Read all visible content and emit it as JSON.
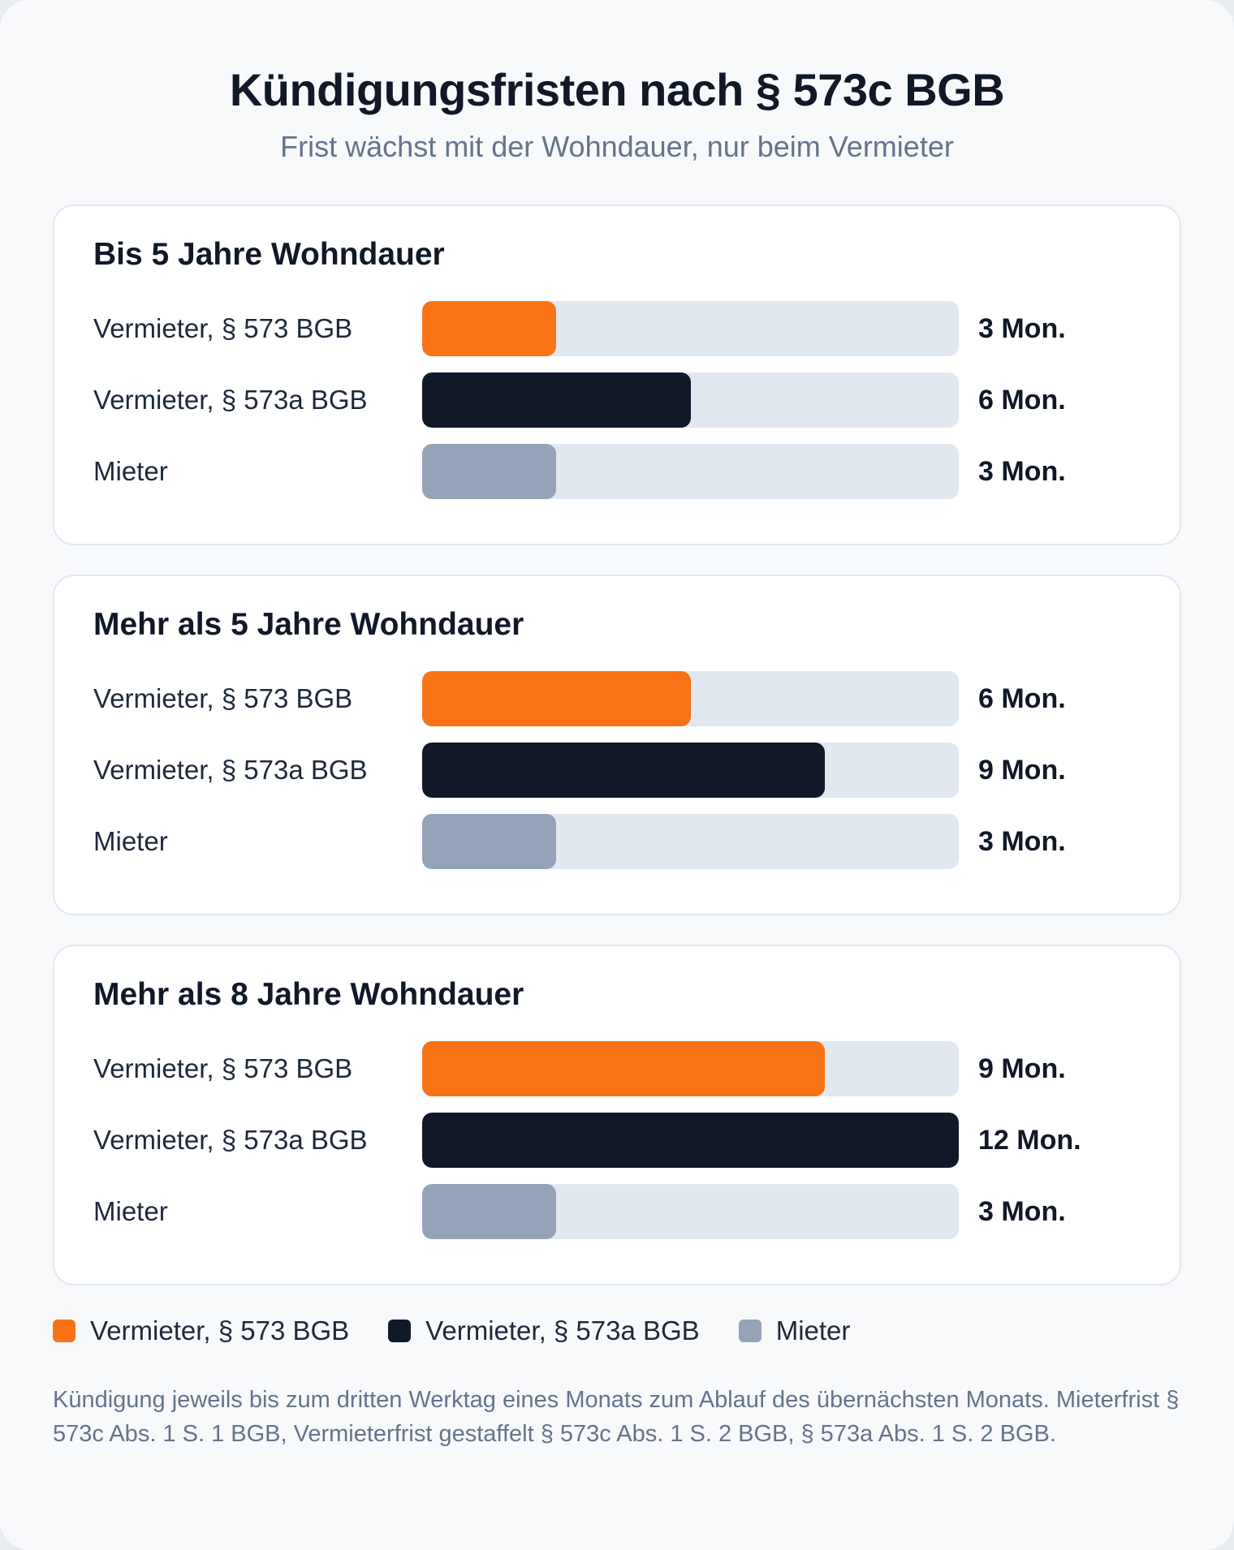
{
  "title": "Kündigungsfristen nach § 573c BGB",
  "subtitle": "Frist wächst mit der Wohndauer, nur beim Vermieter",
  "colors": {
    "vermieter_573": "#f97316",
    "vermieter_573a": "#111827",
    "mieter": "#94a3b8",
    "track": "#e2e8f0"
  },
  "chart_data": {
    "type": "bar",
    "orientation": "horizontal",
    "unit": "Mon.",
    "xlim": [
      0,
      12
    ],
    "grid": false,
    "legend_position": "bottom-left",
    "panels": [
      {
        "title": "Bis 5 Jahre Wohndauer",
        "rows": [
          {
            "label": "Vermieter, § 573 BGB",
            "value": 3,
            "value_label": "3 Mon.",
            "series": "vermieter_573"
          },
          {
            "label": "Vermieter, § 573a BGB",
            "value": 6,
            "value_label": "6 Mon.",
            "series": "vermieter_573a"
          },
          {
            "label": "Mieter",
            "value": 3,
            "value_label": "3 Mon.",
            "series": "mieter"
          }
        ]
      },
      {
        "title": "Mehr als 5 Jahre Wohndauer",
        "rows": [
          {
            "label": "Vermieter, § 573 BGB",
            "value": 6,
            "value_label": "6 Mon.",
            "series": "vermieter_573"
          },
          {
            "label": "Vermieter, § 573a BGB",
            "value": 9,
            "value_label": "9 Mon.",
            "series": "vermieter_573a"
          },
          {
            "label": "Mieter",
            "value": 3,
            "value_label": "3 Mon.",
            "series": "mieter"
          }
        ]
      },
      {
        "title": "Mehr als 8 Jahre Wohndauer",
        "rows": [
          {
            "label": "Vermieter, § 573 BGB",
            "value": 9,
            "value_label": "9 Mon.",
            "series": "vermieter_573"
          },
          {
            "label": "Vermieter, § 573a BGB",
            "value": 12,
            "value_label": "12 Mon.",
            "series": "vermieter_573a"
          },
          {
            "label": "Mieter",
            "value": 3,
            "value_label": "3 Mon.",
            "series": "mieter"
          }
        ]
      }
    ],
    "legend": [
      {
        "label": "Vermieter, § 573 BGB",
        "series": "vermieter_573"
      },
      {
        "label": "Vermieter, § 573a BGB",
        "series": "vermieter_573a"
      },
      {
        "label": "Mieter",
        "series": "mieter"
      }
    ]
  },
  "footnote": "Kündigung jeweils bis zum dritten Werktag eines Monats zum Ablauf des übernächsten Monats. Mieterfrist § 573c Abs. 1 S. 1 BGB, Vermieterfrist gestaffelt § 573c Abs. 1 S. 2 BGB, § 573a Abs. 1 S. 2 BGB."
}
